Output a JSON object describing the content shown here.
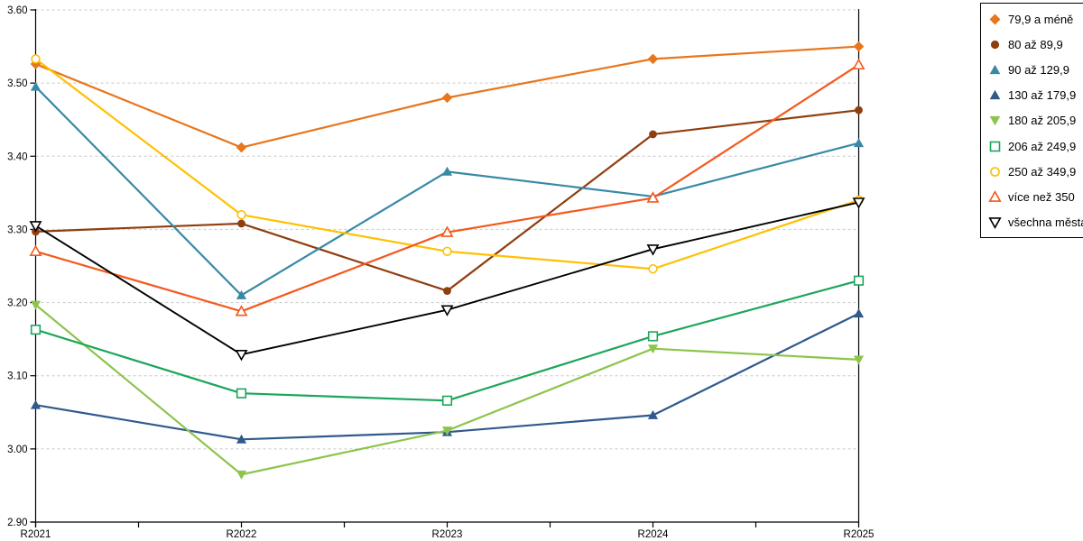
{
  "chart_data": {
    "type": "line",
    "title": "",
    "xlabel": "",
    "ylabel": "",
    "categories": [
      "R2021",
      "R2022",
      "R2023",
      "R2024",
      "R2025"
    ],
    "ylim": [
      2.9,
      3.6
    ],
    "ytick_step": 0.1,
    "y_tick_labels": [
      "2.90",
      "3.00",
      "3.10",
      "3.20",
      "3.30",
      "3.40",
      "3.50",
      "3.60"
    ],
    "grid": "horizontal-dashed",
    "legend_position": "right",
    "series": [
      {
        "name": "79,9 a méně",
        "marker": "diamond-filled",
        "color": "#E8761D",
        "values": [
          3.526,
          3.412,
          3.48,
          3.533,
          3.55
        ]
      },
      {
        "name": "80 až 89,9",
        "marker": "circle-filled",
        "color": "#8F3E0E",
        "values": [
          3.297,
          3.308,
          3.216,
          3.43,
          3.463
        ]
      },
      {
        "name": "90 až 129,9",
        "marker": "triangle-up-filled",
        "color": "#3889A5",
        "values": [
          3.495,
          3.21,
          3.379,
          3.345,
          3.418
        ]
      },
      {
        "name": "130 až 179,9",
        "marker": "triangle-up-filled",
        "color": "#30598C",
        "values": [
          3.06,
          3.013,
          3.023,
          3.046,
          3.185
        ]
      },
      {
        "name": "180 až 205,9",
        "marker": "triangle-down-filled",
        "color": "#8DC44B",
        "values": [
          3.197,
          2.965,
          3.025,
          3.137,
          3.122
        ]
      },
      {
        "name": "206 až 249,9",
        "marker": "square-open",
        "color": "#1CA65C",
        "values": [
          3.163,
          3.076,
          3.066,
          3.154,
          3.23
        ]
      },
      {
        "name": "250 až 349,9",
        "marker": "circle-open",
        "color": "#FFC002",
        "values": [
          3.533,
          3.32,
          3.27,
          3.246,
          3.34
        ]
      },
      {
        "name": "více než 350",
        "marker": "triangle-up-open",
        "color": "#F4591D",
        "values": [
          3.27,
          3.188,
          3.296,
          3.343,
          3.525
        ]
      },
      {
        "name": "všechna města",
        "marker": "triangle-down-open",
        "color": "#000000",
        "values": [
          3.305,
          3.129,
          3.19,
          3.273,
          3.337
        ]
      }
    ]
  },
  "colors": {
    "background": "#FFFFFF",
    "axis": "#000000",
    "grid": "#C8C8C8",
    "legend_border": "#000000"
  }
}
